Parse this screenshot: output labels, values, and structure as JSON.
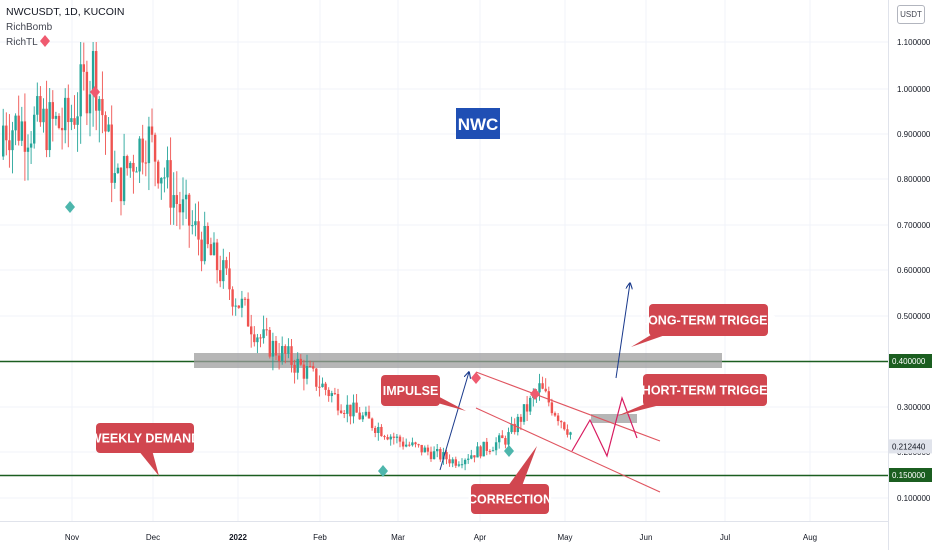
{
  "header": {
    "title": "NWCUSDT, 1D, KUCOIN",
    "indicator_1": "RichBomb",
    "indicator_2": "RichTL"
  },
  "currency_button": "USDT",
  "chart_data": {
    "type": "candlestick",
    "symbol": "NWCUSDT",
    "timeframe": "1D",
    "exchange": "KUCOIN",
    "y_ticks": [
      "1.100000",
      "1.000000",
      "0.900000",
      "0.800000",
      "0.700000",
      "0.600000",
      "0.500000",
      "0.300000",
      "0.200000",
      "0.100000"
    ],
    "x_ticks": [
      "Nov",
      "Dec",
      "2022",
      "Feb",
      "Mar",
      "Apr",
      "May",
      "Jun",
      "Jul",
      "Aug"
    ],
    "price_labels": [
      {
        "text": "0.400000",
        "value": 0.4,
        "color": "#1b5e20"
      },
      {
        "text": "0.212440",
        "value": 0.21244,
        "color": "#e0e3eb"
      },
      {
        "text": "0.150000",
        "value": 0.15,
        "color": "#1b5e20"
      }
    ],
    "levels": [
      {
        "value": 0.4,
        "color": "#1b5e20"
      },
      {
        "value": 0.15,
        "color": "#1b5e20"
      }
    ],
    "last_price": 0.21244,
    "colors": {
      "up": "#26a69a",
      "down": "#ef5350"
    },
    "annotations": {
      "logo": "NWC",
      "impulse": "IMPULSE",
      "correction": "CORRECTION",
      "weekly_demand": "WEEKLY DEMAND",
      "short_term_trigger": "SHORT-TERM TRIGGER",
      "long_term_trigger": "LONG-TERM TRIGGER"
    },
    "annotation_colors": {
      "label_bg": "#d1464f",
      "logo_bg": "#1f4fb4",
      "zone": "#9e9e9e"
    },
    "candles_ohlc": [
      {
        "date": "2021-10-10",
        "o": 0.85,
        "h": 0.95,
        "l": 0.8,
        "c": 0.92
      },
      {
        "date": "2021-10-20",
        "o": 0.92,
        "h": 1.1,
        "l": 0.85,
        "c": 1.05
      },
      {
        "date": "2021-10-28",
        "o": 1.05,
        "h": 1.08,
        "l": 0.72,
        "c": 0.78
      },
      {
        "date": "2021-11-08",
        "o": 0.78,
        "h": 0.98,
        "l": 0.75,
        "c": 0.9
      },
      {
        "date": "2021-11-20",
        "o": 0.9,
        "h": 0.92,
        "l": 0.7,
        "c": 0.74
      },
      {
        "date": "2021-12-05",
        "o": 0.74,
        "h": 0.8,
        "l": 0.55,
        "c": 0.6
      },
      {
        "date": "2021-12-20",
        "o": 0.6,
        "h": 0.62,
        "l": 0.4,
        "c": 0.45
      },
      {
        "date": "2022-01-05",
        "o": 0.45,
        "h": 0.48,
        "l": 0.36,
        "c": 0.38
      },
      {
        "date": "2022-01-20",
        "o": 0.38,
        "h": 0.4,
        "l": 0.27,
        "c": 0.3
      },
      {
        "date": "2022-02-10",
        "o": 0.3,
        "h": 0.33,
        "l": 0.19,
        "c": 0.22
      },
      {
        "date": "2022-03-01",
        "o": 0.22,
        "h": 0.25,
        "l": 0.16,
        "c": 0.18
      },
      {
        "date": "2022-03-20",
        "o": 0.18,
        "h": 0.24,
        "l": 0.17,
        "c": 0.23
      },
      {
        "date": "2022-04-01",
        "o": 0.23,
        "h": 0.38,
        "l": 0.22,
        "c": 0.34
      },
      {
        "date": "2022-04-15",
        "o": 0.34,
        "h": 0.35,
        "l": 0.19,
        "c": 0.22
      },
      {
        "date": "2022-04-28",
        "o": 0.22,
        "h": 0.34,
        "l": 0.21,
        "c": 0.31
      },
      {
        "date": "2022-05-08",
        "o": 0.31,
        "h": 0.32,
        "l": 0.2,
        "c": 0.21244
      }
    ]
  }
}
